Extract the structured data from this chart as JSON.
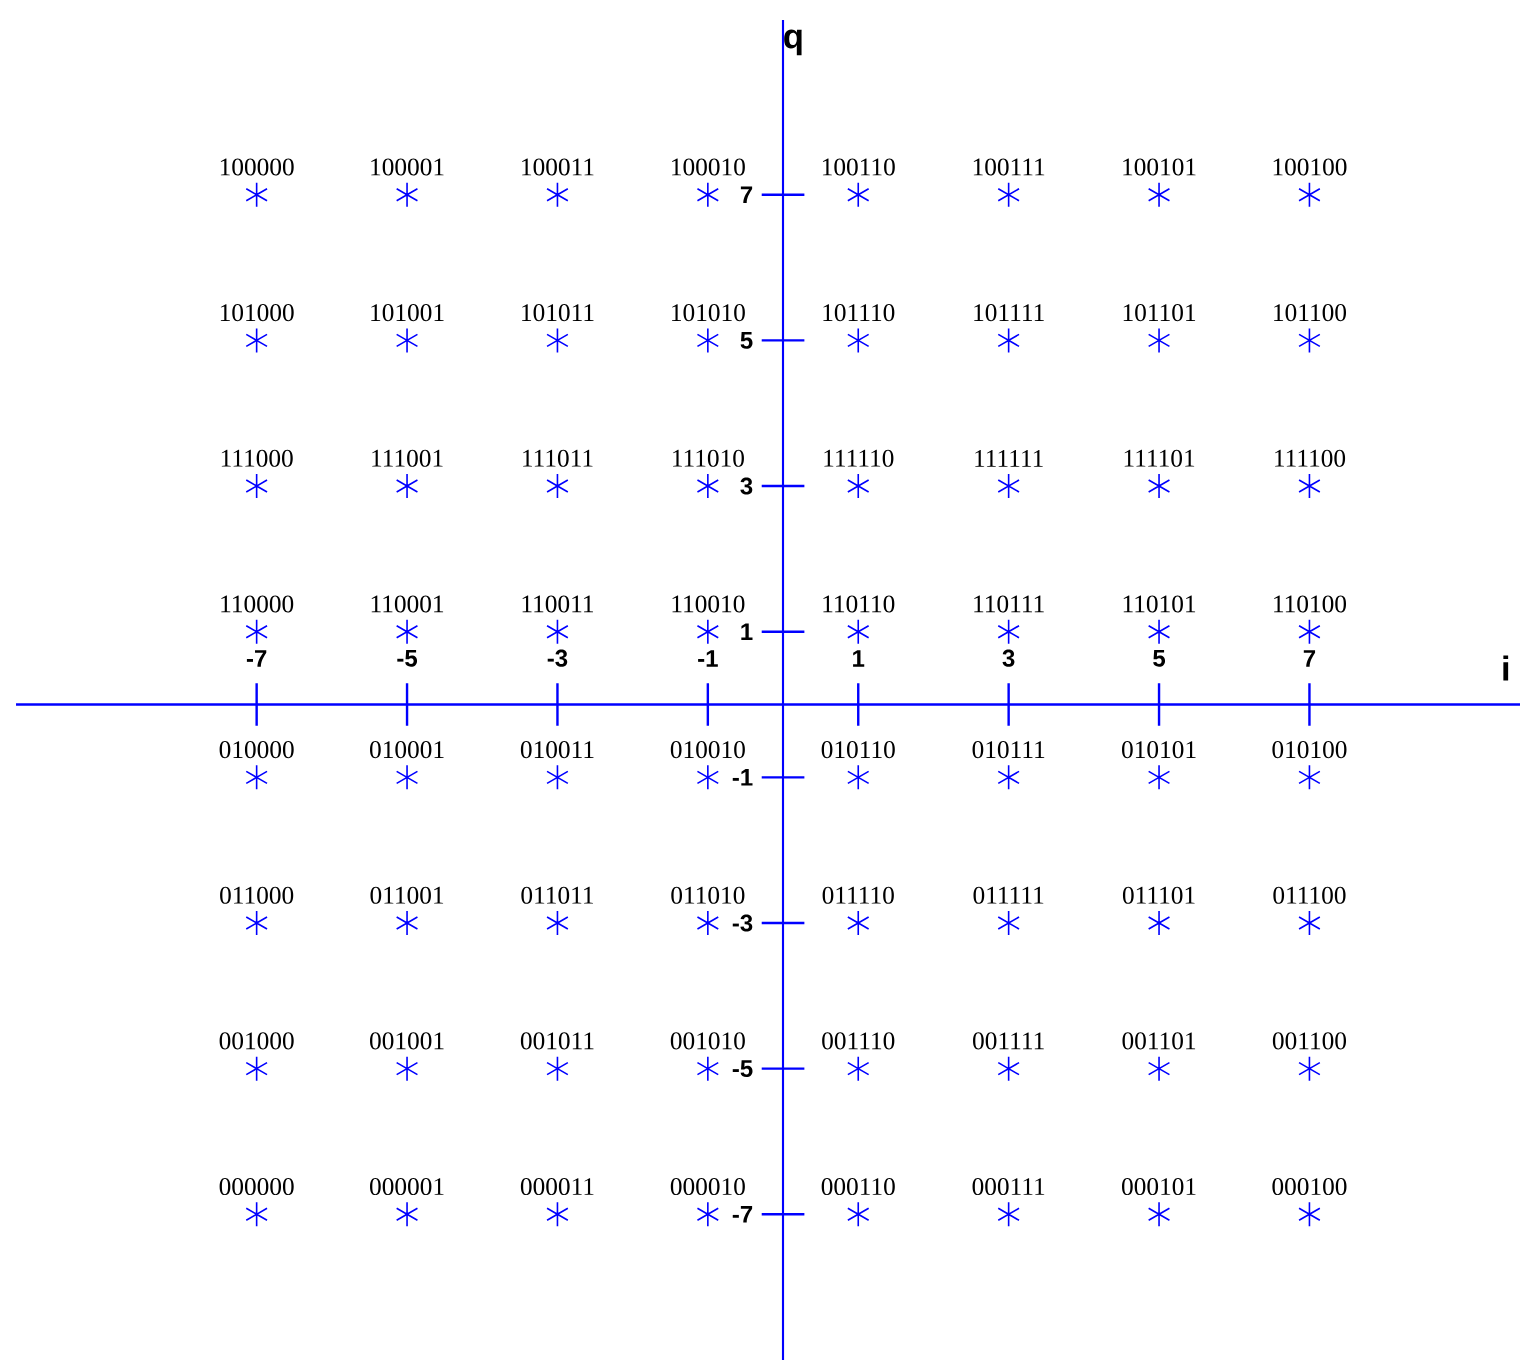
{
  "chart_data": {
    "type": "scatter",
    "xlabel": "i",
    "ylabel": "q",
    "marker": "cross",
    "xlim": [
      -10.2,
      9.8
    ],
    "ylim": [
      -9,
      9.4
    ],
    "xticks": [
      -7,
      -5,
      -3,
      -1,
      1,
      3,
      5,
      7
    ],
    "yticks": [
      -7,
      -5,
      -3,
      -1,
      1,
      3,
      5,
      7
    ],
    "series": [
      {
        "color": "#0000ff",
        "x": [
          -7,
          -5,
          -3,
          -1,
          1,
          3,
          5,
          7,
          -7,
          -5,
          -3,
          -1,
          1,
          3,
          5,
          7,
          -7,
          -5,
          -3,
          -1,
          1,
          3,
          5,
          7,
          -7,
          -5,
          -3,
          -1,
          1,
          3,
          5,
          7,
          -7,
          -5,
          -3,
          -1,
          1,
          3,
          5,
          7,
          -7,
          -5,
          -3,
          -1,
          1,
          3,
          5,
          7,
          -7,
          -5,
          -3,
          -1,
          1,
          3,
          5,
          7,
          -7,
          -5,
          -3,
          -1,
          1,
          3,
          5,
          7
        ],
        "values": [
          7,
          7,
          7,
          7,
          7,
          7,
          7,
          7,
          5,
          5,
          5,
          5,
          5,
          5,
          5,
          5,
          3,
          3,
          3,
          3,
          3,
          3,
          3,
          3,
          1,
          1,
          1,
          1,
          1,
          1,
          1,
          1,
          -1,
          -1,
          -1,
          -1,
          -1,
          -1,
          -1,
          -1,
          -3,
          -3,
          -3,
          -3,
          -3,
          -3,
          -3,
          -3,
          -5,
          -5,
          -5,
          -5,
          -5,
          -5,
          -5,
          -5,
          -7,
          -7,
          -7,
          -7,
          -7,
          -7,
          -7,
          -7
        ]
      }
    ],
    "annotations": [
      {
        "text": "100000",
        "x": -7,
        "y": 7
      },
      {
        "text": "100001",
        "x": -5,
        "y": 7
      },
      {
        "text": "100011",
        "x": -3,
        "y": 7
      },
      {
        "text": "100010",
        "x": -1,
        "y": 7
      },
      {
        "text": "100110",
        "x": 1,
        "y": 7
      },
      {
        "text": "100111",
        "x": 3,
        "y": 7
      },
      {
        "text": "100101",
        "x": 5,
        "y": 7
      },
      {
        "text": "100100",
        "x": 7,
        "y": 7
      },
      {
        "text": "101000",
        "x": -7,
        "y": 5
      },
      {
        "text": "101001",
        "x": -5,
        "y": 5
      },
      {
        "text": "101011",
        "x": -3,
        "y": 5
      },
      {
        "text": "101010",
        "x": -1,
        "y": 5
      },
      {
        "text": "101110",
        "x": 1,
        "y": 5
      },
      {
        "text": "101111",
        "x": 3,
        "y": 5
      },
      {
        "text": "101101",
        "x": 5,
        "y": 5
      },
      {
        "text": "101100",
        "x": 7,
        "y": 5
      },
      {
        "text": "111000",
        "x": -7,
        "y": 3
      },
      {
        "text": "111001",
        "x": -5,
        "y": 3
      },
      {
        "text": "111011",
        "x": -3,
        "y": 3
      },
      {
        "text": "111010",
        "x": -1,
        "y": 3
      },
      {
        "text": "111110",
        "x": 1,
        "y": 3
      },
      {
        "text": "111111",
        "x": 3,
        "y": 3
      },
      {
        "text": "111101",
        "x": 5,
        "y": 3
      },
      {
        "text": "111100",
        "x": 7,
        "y": 3
      },
      {
        "text": "110000",
        "x": -7,
        "y": 1
      },
      {
        "text": "110001",
        "x": -5,
        "y": 1
      },
      {
        "text": "110011",
        "x": -3,
        "y": 1
      },
      {
        "text": "110010",
        "x": -1,
        "y": 1
      },
      {
        "text": "110110",
        "x": 1,
        "y": 1
      },
      {
        "text": "110111",
        "x": 3,
        "y": 1
      },
      {
        "text": "110101",
        "x": 5,
        "y": 1
      },
      {
        "text": "110100",
        "x": 7,
        "y": 1
      },
      {
        "text": "010000",
        "x": -7,
        "y": -1
      },
      {
        "text": "010001",
        "x": -5,
        "y": -1
      },
      {
        "text": "010011",
        "x": -3,
        "y": -1
      },
      {
        "text": "010010",
        "x": -1,
        "y": -1
      },
      {
        "text": "010110",
        "x": 1,
        "y": -1
      },
      {
        "text": "010111",
        "x": 3,
        "y": -1
      },
      {
        "text": "010101",
        "x": 5,
        "y": -1
      },
      {
        "text": "010100",
        "x": 7,
        "y": -1
      },
      {
        "text": "011000",
        "x": -7,
        "y": -3
      },
      {
        "text": "011001",
        "x": -5,
        "y": -3
      },
      {
        "text": "011011",
        "x": -3,
        "y": -3
      },
      {
        "text": "011010",
        "x": -1,
        "y": -3
      },
      {
        "text": "011110",
        "x": 1,
        "y": -3
      },
      {
        "text": "011111",
        "x": 3,
        "y": -3
      },
      {
        "text": "011101",
        "x": 5,
        "y": -3
      },
      {
        "text": "011100",
        "x": 7,
        "y": -3
      },
      {
        "text": "001000",
        "x": -7,
        "y": -5
      },
      {
        "text": "001001",
        "x": -5,
        "y": -5
      },
      {
        "text": "001011",
        "x": -3,
        "y": -5
      },
      {
        "text": "001010",
        "x": -1,
        "y": -5
      },
      {
        "text": "001110",
        "x": 1,
        "y": -5
      },
      {
        "text": "001111",
        "x": 3,
        "y": -5
      },
      {
        "text": "001101",
        "x": 5,
        "y": -5
      },
      {
        "text": "001100",
        "x": 7,
        "y": -5
      },
      {
        "text": "000000",
        "x": -7,
        "y": -7
      },
      {
        "text": "000001",
        "x": -5,
        "y": -7
      },
      {
        "text": "000011",
        "x": -3,
        "y": -7
      },
      {
        "text": "000010",
        "x": -1,
        "y": -7
      },
      {
        "text": "000110",
        "x": 1,
        "y": -7
      },
      {
        "text": "000111",
        "x": 3,
        "y": -7
      },
      {
        "text": "000101",
        "x": 5,
        "y": -7
      },
      {
        "text": "000100",
        "x": 7,
        "y": -7
      }
    ]
  }
}
